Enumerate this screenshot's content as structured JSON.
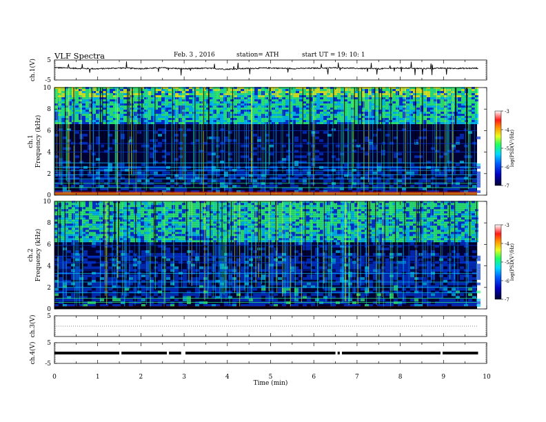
{
  "header": {
    "title": "VLF  Spectra",
    "date": "Feb. 3   , 2016",
    "station": "station= ATH",
    "start": "start  UT =    19: 10: 1"
  },
  "chart_data": [
    {
      "type": "line",
      "panel": "ch1-waveform",
      "ylabel": "ch.1(V)",
      "ylim": [
        -5,
        5
      ],
      "yticks": [
        "5",
        "-5"
      ],
      "x": [
        0,
        0.5,
        1,
        1.5,
        2,
        2.5,
        3,
        3.5,
        4,
        4.5,
        5,
        5.5,
        6,
        6.5,
        7,
        7.5,
        8,
        8.5,
        9,
        9.5,
        9.8
      ],
      "values": [
        1.2,
        0.8,
        0.6,
        1.0,
        0.7,
        1.1,
        0.6,
        0.9,
        0.4,
        0.8,
        1.0,
        0.7,
        0.9,
        1.1,
        0.8,
        0.6,
        1.0,
        0.7,
        0.9,
        0.8,
        0.9
      ]
    },
    {
      "type": "heatmap",
      "panel": "ch1-spectrogram",
      "ylabel": "Frequency  (kHz)",
      "channel_label": "ch.1",
      "ylim": [
        0,
        10
      ],
      "yticks": [
        "0",
        "2",
        "4",
        "6",
        "8",
        "10"
      ],
      "colorbar": {
        "label": "log(PSD(V²/Hz)",
        "ticks": [
          "-3",
          "-4",
          "-5",
          "-6",
          "-7"
        ],
        "range": [
          -7,
          -3
        ]
      },
      "bands_khz": [
        6.0,
        4.8,
        4.0,
        3.0,
        2.6,
        2.3,
        1.9,
        1.5,
        1.1,
        0.7,
        0.3,
        0.1
      ]
    },
    {
      "type": "heatmap",
      "panel": "ch2-spectrogram",
      "ylabel": "Frequency  (kHz)",
      "channel_label": "ch.2",
      "ylim": [
        0,
        10
      ],
      "yticks": [
        "0",
        "2",
        "4",
        "6",
        "8",
        "10"
      ],
      "colorbar": {
        "label": "log(PSD(V²/Hz)",
        "ticks": [
          "-3",
          "-4",
          "-5",
          "-6",
          "-7"
        ],
        "range": [
          -7,
          -3
        ]
      },
      "bands_khz": [
        5.9,
        4.9,
        4.3,
        3.6,
        3.3,
        2.5,
        2.0,
        1.5,
        1.0,
        0.6,
        0.2
      ]
    },
    {
      "type": "line",
      "panel": "ch3-waveform",
      "ylabel": "ch.3(V)",
      "ylim": [
        -5,
        5
      ],
      "yticks": [
        "5"
      ],
      "x": [
        0,
        9.8
      ],
      "values": [
        0,
        0
      ]
    },
    {
      "type": "line",
      "panel": "ch4-waveform",
      "ylabel": "ch.4(V)",
      "ylim": [
        -5,
        5
      ],
      "yticks": [
        "5",
        "-5"
      ],
      "x": [
        0,
        9.8
      ],
      "values": [
        0,
        0
      ]
    }
  ],
  "xaxis": {
    "label": "Time  (min)",
    "range": [
      0,
      10
    ],
    "ticks": [
      "0",
      "1",
      "2",
      "3",
      "4",
      "5",
      "6",
      "7",
      "8",
      "9",
      "10"
    ]
  },
  "colors": {
    "dark": "#000033",
    "navy": "#00004a",
    "blue": "#0038e0",
    "cyan": "#00c8ff",
    "green": "#30ff7a",
    "yellow": "#f0ff20",
    "orange": "#ff8a00",
    "red": "#ff1010"
  }
}
